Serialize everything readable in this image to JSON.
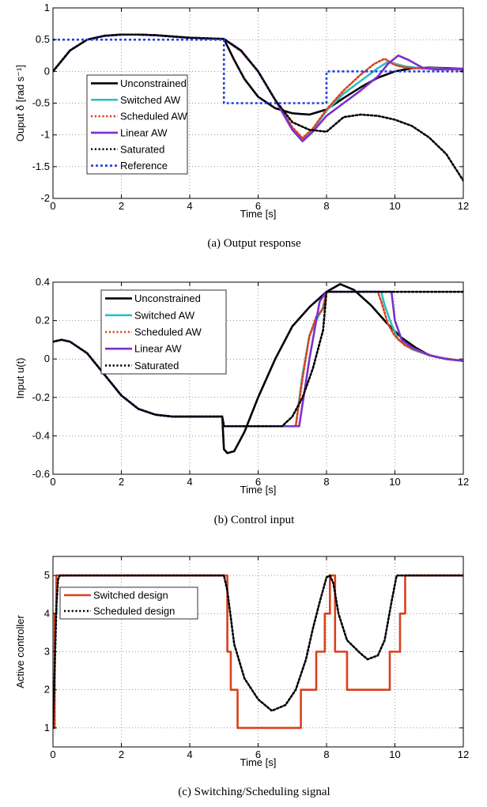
{
  "chart_data": [
    {
      "type": "line",
      "caption": "(a)  Output response",
      "xlabel": "Time [s]",
      "ylabel": "Ouput δ [rad s⁻¹]",
      "xlim": [
        0,
        12
      ],
      "ylim": [
        -2,
        1
      ],
      "xticks": [
        0,
        2,
        4,
        6,
        8,
        10,
        12
      ],
      "yticks": [
        -2,
        -1.5,
        -1,
        -0.5,
        0,
        0.5,
        1
      ],
      "grid": true,
      "legend": "left-center",
      "series": [
        {
          "name": "Unconstrained",
          "color": "#000000",
          "style": "solid",
          "x": [
            0,
            0.5,
            1,
            1.5,
            2,
            2.5,
            3,
            3.5,
            4,
            4.5,
            5,
            5.3,
            5.6,
            6,
            6.5,
            7,
            7.5,
            8,
            8.5,
            9,
            9.5,
            10,
            10.5,
            11,
            11.5,
            12
          ],
          "y": [
            0,
            0.33,
            0.5,
            0.56,
            0.58,
            0.58,
            0.57,
            0.55,
            0.53,
            0.52,
            0.51,
            0.18,
            -0.12,
            -0.4,
            -0.58,
            -0.66,
            -0.68,
            -0.6,
            -0.42,
            -0.25,
            -0.1,
            0.0,
            0.05,
            0.06,
            0.05,
            0.04
          ]
        },
        {
          "name": "Switched AW",
          "color": "#2bbfc0",
          "style": "solid",
          "x": [
            0,
            0.5,
            1,
            1.5,
            2,
            2.5,
            3,
            3.5,
            4,
            4.5,
            5,
            5.5,
            6,
            6.5,
            7,
            7.3,
            7.6,
            8,
            8.5,
            9,
            9.5,
            9.8,
            10,
            10.3,
            10.6,
            11,
            11.5,
            12
          ],
          "y": [
            0,
            0.33,
            0.5,
            0.56,
            0.58,
            0.58,
            0.57,
            0.55,
            0.53,
            0.52,
            0.51,
            0.32,
            0.0,
            -0.45,
            -0.9,
            -1.07,
            -0.92,
            -0.62,
            -0.35,
            -0.15,
            0.05,
            0.15,
            0.12,
            0.08,
            0.06,
            0.05,
            0.04,
            0.03
          ]
        },
        {
          "name": "Scheduled AW",
          "color": "#e0401a",
          "style": "dotted",
          "x": [
            0,
            0.5,
            1,
            1.5,
            2,
            2.5,
            3,
            3.5,
            4,
            4.5,
            5,
            5.5,
            6,
            6.5,
            7,
            7.3,
            7.6,
            8,
            8.5,
            9,
            9.4,
            9.7,
            10,
            10.3,
            10.6,
            11,
            11.5,
            12
          ],
          "y": [
            0,
            0.33,
            0.5,
            0.56,
            0.58,
            0.58,
            0.57,
            0.55,
            0.53,
            0.52,
            0.51,
            0.32,
            0.0,
            -0.45,
            -0.88,
            -1.05,
            -0.9,
            -0.6,
            -0.3,
            -0.05,
            0.12,
            0.2,
            0.1,
            0.06,
            0.05,
            0.04,
            0.03,
            0.03
          ]
        },
        {
          "name": "Linear AW",
          "color": "#7b2fcf",
          "style": "solid",
          "x": [
            0,
            0.5,
            1,
            1.5,
            2,
            2.5,
            3,
            3.5,
            4,
            4.5,
            5,
            5.5,
            6,
            6.5,
            7,
            7.3,
            7.6,
            8,
            8.5,
            9,
            9.5,
            9.8,
            10.1,
            10.4,
            10.8,
            11.2,
            11.6,
            12
          ],
          "y": [
            0,
            0.33,
            0.5,
            0.56,
            0.58,
            0.58,
            0.57,
            0.55,
            0.53,
            0.52,
            0.51,
            0.33,
            0.0,
            -0.45,
            -0.92,
            -1.1,
            -0.95,
            -0.7,
            -0.5,
            -0.3,
            -0.08,
            0.12,
            0.25,
            0.18,
            0.06,
            0.03,
            0.04,
            0.04
          ]
        },
        {
          "name": "Saturated",
          "color": "#000000",
          "style": "dotted",
          "x": [
            0,
            0.5,
            1,
            1.5,
            2,
            2.5,
            3,
            3.5,
            4,
            4.5,
            5,
            5.5,
            6,
            6.5,
            7,
            7.5,
            8,
            8.5,
            9,
            9.5,
            10,
            10.5,
            11,
            11.5,
            12
          ],
          "y": [
            0,
            0.33,
            0.5,
            0.56,
            0.58,
            0.58,
            0.57,
            0.55,
            0.53,
            0.52,
            0.51,
            0.33,
            0.0,
            -0.45,
            -0.8,
            -0.92,
            -0.95,
            -0.72,
            -0.68,
            -0.7,
            -0.76,
            -0.86,
            -1.04,
            -1.3,
            -1.72
          ]
        },
        {
          "name": "Reference",
          "color": "#1f3fe0",
          "style": "dashdot",
          "x": [
            0,
            5,
            5,
            8,
            8,
            12
          ],
          "y": [
            0.5,
            0.5,
            -0.5,
            -0.5,
            0,
            0
          ]
        }
      ]
    },
    {
      "type": "line",
      "caption": "(b)  Control input",
      "xlabel": "Time [s]",
      "ylabel": "Input u(t)",
      "xlim": [
        0,
        12
      ],
      "ylim": [
        -0.6,
        0.4
      ],
      "xticks": [
        0,
        2,
        4,
        6,
        8,
        10,
        12
      ],
      "yticks": [
        -0.6,
        -0.4,
        -0.2,
        0,
        0.2,
        0.4
      ],
      "grid": true,
      "legend": "top-center",
      "series": [
        {
          "name": "Unconstrained",
          "color": "#000000",
          "style": "solid",
          "x": [
            0,
            0.25,
            0.5,
            1,
            1.5,
            2,
            2.5,
            3,
            3.5,
            4,
            4.5,
            4.95,
            5.0,
            5.1,
            5.3,
            5.6,
            6,
            6.5,
            7,
            7.5,
            8,
            8.4,
            8.8,
            9.3,
            9.8,
            10.2,
            10.6,
            11,
            11.5,
            12
          ],
          "y": [
            0.09,
            0.1,
            0.09,
            0.03,
            -0.08,
            -0.19,
            -0.26,
            -0.29,
            -0.3,
            -0.3,
            -0.3,
            -0.3,
            -0.47,
            -0.49,
            -0.48,
            -0.38,
            -0.2,
            0.0,
            0.17,
            0.27,
            0.35,
            0.39,
            0.36,
            0.28,
            0.18,
            0.11,
            0.06,
            0.02,
            0.0,
            -0.01
          ]
        },
        {
          "name": "Switched AW",
          "color": "#2bbfc0",
          "style": "solid",
          "x": [
            0,
            0.25,
            0.5,
            1,
            1.5,
            2,
            2.5,
            3,
            3.5,
            4,
            4.5,
            4.95,
            5.0,
            7.1,
            7.3,
            7.5,
            7.7,
            7.9,
            8.0,
            9.6,
            9.7,
            9.9,
            10.1,
            10.5,
            11,
            11.5,
            12
          ],
          "y": [
            0.09,
            0.1,
            0.09,
            0.03,
            -0.08,
            -0.19,
            -0.26,
            -0.29,
            -0.3,
            -0.3,
            -0.3,
            -0.3,
            -0.35,
            -0.35,
            -0.08,
            0.12,
            0.2,
            0.27,
            0.35,
            0.35,
            0.28,
            0.18,
            0.1,
            0.05,
            0.02,
            0.0,
            -0.01
          ]
        },
        {
          "name": "Scheduled AW",
          "color": "#e0401a",
          "style": "dotted",
          "x": [
            0,
            0.25,
            0.5,
            1,
            1.5,
            2,
            2.5,
            3,
            3.5,
            4,
            4.5,
            4.95,
            5.0,
            7.1,
            7.3,
            7.5,
            7.7,
            7.9,
            8.0,
            9.5,
            9.6,
            9.8,
            10.0,
            10.3,
            10.7,
            11.2,
            11.6,
            12
          ],
          "y": [
            0.09,
            0.1,
            0.09,
            0.03,
            -0.08,
            -0.19,
            -0.26,
            -0.29,
            -0.3,
            -0.3,
            -0.3,
            -0.3,
            -0.35,
            -0.35,
            -0.1,
            0.12,
            0.22,
            0.26,
            0.35,
            0.35,
            0.3,
            0.18,
            0.12,
            0.07,
            0.04,
            0.01,
            0.0,
            -0.01
          ]
        },
        {
          "name": "Linear AW",
          "color": "#7b2fcf",
          "style": "solid",
          "x": [
            0,
            0.25,
            0.5,
            1,
            1.5,
            2,
            2.5,
            3,
            3.5,
            4,
            4.5,
            4.95,
            5.0,
            7.2,
            7.5,
            7.8,
            8.0,
            9.9,
            10.0,
            10.2,
            10.5,
            11,
            11.5,
            12
          ],
          "y": [
            0.09,
            0.1,
            0.09,
            0.03,
            -0.08,
            -0.19,
            -0.26,
            -0.29,
            -0.3,
            -0.3,
            -0.3,
            -0.3,
            -0.35,
            -0.35,
            0.0,
            0.3,
            0.35,
            0.35,
            0.2,
            0.1,
            0.06,
            0.02,
            0.0,
            -0.01
          ]
        },
        {
          "name": "Saturated",
          "color": "#000000",
          "style": "dotted",
          "x": [
            0,
            0.25,
            0.5,
            1,
            1.5,
            2,
            2.5,
            3,
            3.5,
            4,
            4.5,
            4.95,
            5.0,
            6.7,
            7.0,
            7.3,
            7.6,
            7.9,
            8.0,
            12
          ],
          "y": [
            0.09,
            0.1,
            0.09,
            0.03,
            -0.08,
            -0.19,
            -0.26,
            -0.29,
            -0.3,
            -0.3,
            -0.3,
            -0.3,
            -0.35,
            -0.35,
            -0.3,
            -0.2,
            -0.05,
            0.15,
            0.35,
            0.35
          ]
        }
      ]
    },
    {
      "type": "line",
      "caption": "(c)  Switching/Scheduling signal",
      "xlabel": "Time [s]",
      "ylabel": "Active controller",
      "xlim": [
        0,
        12
      ],
      "ylim": [
        0.5,
        5.5
      ],
      "xticks": [
        0,
        2,
        4,
        6,
        8,
        10,
        12
      ],
      "yticks": [
        1,
        2,
        3,
        4,
        5
      ],
      "grid": true,
      "legend": "top-left",
      "series": [
        {
          "name": "Switched design",
          "color": "#d8401c",
          "style": "solid",
          "step": true,
          "x": [
            0,
            0.05,
            0.05,
            0.1,
            0.1,
            5.1,
            5.1,
            5.2,
            5.2,
            5.4,
            5.4,
            7.25,
            7.25,
            7.7,
            7.7,
            7.95,
            7.95,
            8.1,
            8.1,
            8.25,
            8.25,
            8.6,
            8.6,
            9.85,
            9.85,
            10.15,
            10.15,
            10.3,
            10.3,
            12
          ],
          "y": [
            1,
            1,
            4,
            4,
            5,
            5,
            3,
            3,
            2,
            2,
            1,
            1,
            2,
            2,
            3,
            3,
            4,
            4,
            5,
            5,
            3,
            3,
            2,
            2,
            3,
            3,
            4,
            4,
            5,
            5
          ]
        },
        {
          "name": "Scheduled design",
          "color": "#000000",
          "style": "dotted",
          "x": [
            0,
            0.05,
            0.1,
            0.15,
            0.2,
            5.0,
            5.1,
            5.3,
            5.6,
            6.0,
            6.4,
            6.8,
            7.1,
            7.4,
            7.6,
            7.8,
            8.0,
            8.1,
            8.2,
            8.35,
            8.6,
            9.0,
            9.2,
            9.5,
            9.7,
            9.9,
            10.05,
            10.2,
            12
          ],
          "y": [
            1,
            2.5,
            4.2,
            4.9,
            5,
            5,
            4.6,
            3.2,
            2.3,
            1.75,
            1.45,
            1.6,
            2.0,
            2.8,
            3.6,
            4.3,
            4.95,
            5.0,
            4.8,
            4.0,
            3.3,
            2.95,
            2.8,
            2.9,
            3.3,
            4.3,
            5.0,
            5.0,
            5.0
          ]
        }
      ]
    }
  ]
}
